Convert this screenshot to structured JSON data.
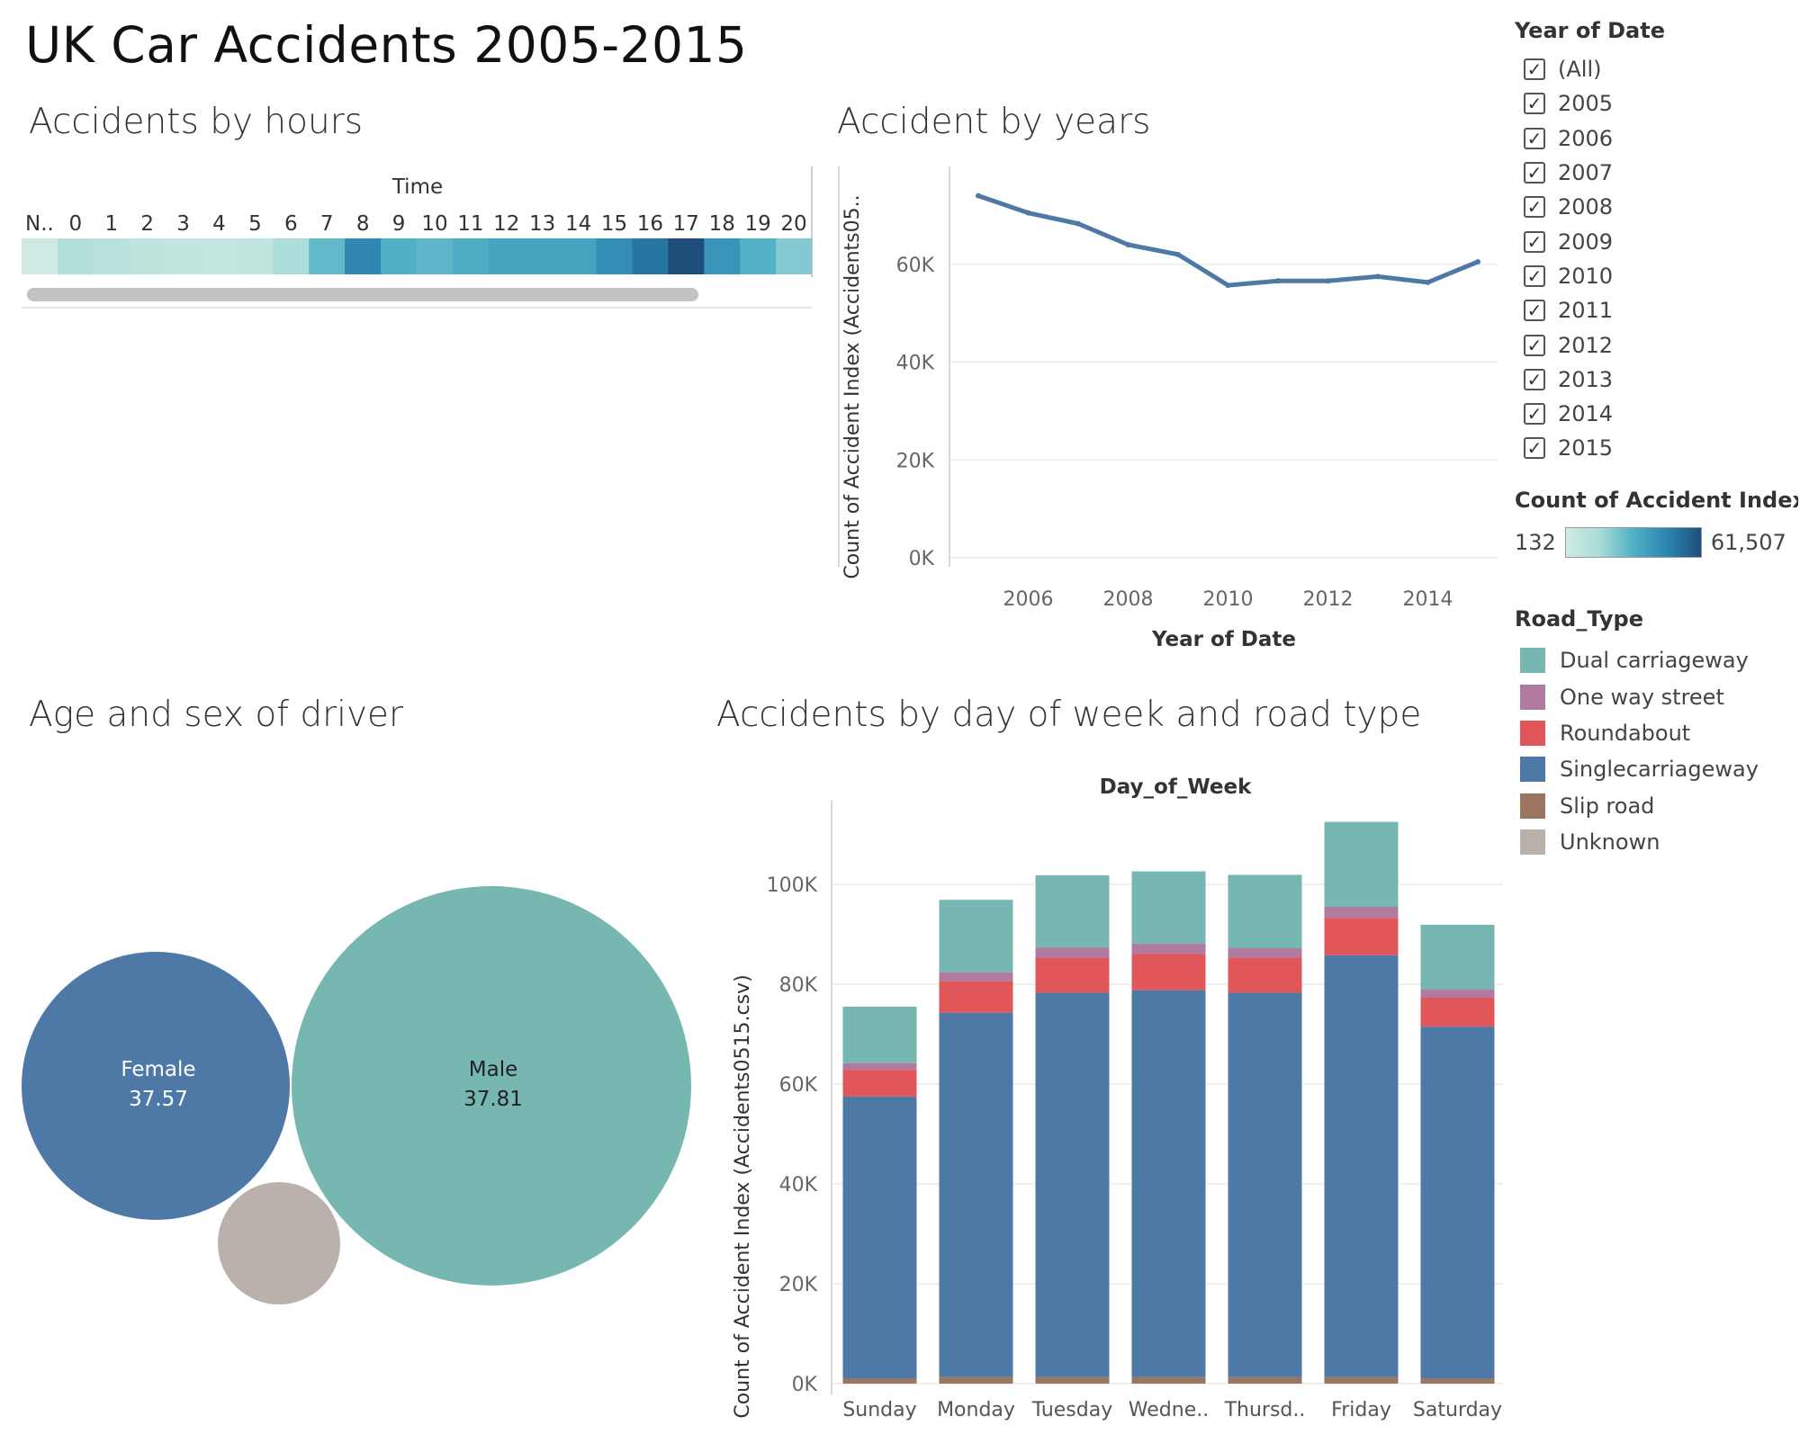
{
  "dashboard_title": "UK Car Accidents 2005-2015",
  "sheets": {
    "hours": "Accidents by hours",
    "years": "Accident by years",
    "age_sex": "Age and sex of driver",
    "dow": "Accidents by day of week and road type"
  },
  "colors": {
    "dual_carriageway": "#76b7b2",
    "one_way_street": "#b07aa1",
    "roundabout": "#e15759",
    "singlecarriageway": "#4e79a7",
    "slip_road": "#9c755f",
    "unknown": "#bab0ac",
    "line": "#4e79a7"
  },
  "filter": {
    "title": "Year of Date",
    "items": [
      {
        "label": "(All)",
        "checked": true
      },
      {
        "label": "2005",
        "checked": true
      },
      {
        "label": "2006",
        "checked": true
      },
      {
        "label": "2007",
        "checked": true
      },
      {
        "label": "2008",
        "checked": true
      },
      {
        "label": "2009",
        "checked": true
      },
      {
        "label": "2010",
        "checked": true
      },
      {
        "label": "2011",
        "checked": true
      },
      {
        "label": "2012",
        "checked": true
      },
      {
        "label": "2013",
        "checked": true
      },
      {
        "label": "2014",
        "checked": true
      },
      {
        "label": "2015",
        "checked": true
      }
    ],
    "check_glyph": "✓"
  },
  "color_legend": {
    "title": "Count of Accident Index (..",
    "min_label": "132",
    "max_label": "61,507"
  },
  "road_type_legend": {
    "title": "Road_Type",
    "items": [
      {
        "label": "Dual carriageway",
        "color": "#76b7b2"
      },
      {
        "label": "One way street",
        "color": "#b07aa1"
      },
      {
        "label": "Roundabout",
        "color": "#e15759"
      },
      {
        "label": "Singlecarriageway",
        "color": "#4e79a7"
      },
      {
        "label": "Slip road",
        "color": "#9c755f"
      },
      {
        "label": "Unknown",
        "color": "#bab0ac"
      }
    ]
  },
  "chart_data": [
    {
      "type": "heatmap",
      "header": "Time",
      "categories": [
        "N..",
        "0",
        "1",
        "2",
        "3",
        "4",
        "5",
        "6",
        "7",
        "8",
        "9",
        "10",
        "11",
        "12",
        "13",
        "14",
        "15",
        "16",
        "17",
        "18",
        "19",
        "20"
      ],
      "values": [
        132,
        12000,
        8500,
        7000,
        5500,
        4500,
        6000,
        14000,
        30000,
        47000,
        34000,
        31000,
        35000,
        38000,
        38000,
        38000,
        45000,
        52000,
        61507,
        43000,
        33000,
        23000
      ],
      "color_range": [
        132,
        61507
      ]
    },
    {
      "type": "line",
      "x": [
        2005,
        2006,
        2007,
        2008,
        2009,
        2010,
        2011,
        2012,
        2013,
        2014,
        2015
      ],
      "y": [
        74000,
        70500,
        68300,
        64000,
        62000,
        55700,
        56600,
        56600,
        57500,
        56300,
        60500
      ],
      "xlabel": "Year of Date",
      "ylabel": "Count of Accident Index (Accidents05..",
      "xticks": [
        "2006",
        "2008",
        "2010",
        "2012",
        "2014"
      ],
      "yticks": [
        "0K",
        "20K",
        "40K",
        "60K"
      ],
      "ylim": [
        0,
        80000
      ]
    },
    {
      "type": "bubble",
      "items": [
        {
          "label": "Female",
          "value": "37.57",
          "color": "#4e79a7"
        },
        {
          "label": "Male",
          "value": "37.81",
          "color": "#76b7b2"
        },
        {
          "label": "",
          "value": "",
          "color": "#bab0ac"
        }
      ]
    },
    {
      "type": "bar",
      "stacked": true,
      "header": "Day_of_Week",
      "categories": [
        "Sunday",
        "Monday",
        "Tuesday",
        "Wedne..",
        "Thursd..",
        "Friday",
        "Saturday"
      ],
      "ylabel": "Count of Accident Index (Accidents0515.csv)",
      "yticks": [
        "0K",
        "20K",
        "40K",
        "60K",
        "80K",
        "100K"
      ],
      "ylim": [
        0,
        115000
      ],
      "series": [
        {
          "name": "Slip road",
          "values": [
            1000,
            1300,
            1300,
            1300,
            1300,
            1300,
            1000
          ]
        },
        {
          "name": "Singlecarriageway",
          "values": [
            56500,
            73000,
            77000,
            77500,
            77000,
            84500,
            70500
          ]
        },
        {
          "name": "Roundabout",
          "values": [
            5300,
            6300,
            7000,
            7300,
            7000,
            7500,
            5800
          ]
        },
        {
          "name": "One way street",
          "values": [
            1400,
            1800,
            2000,
            2000,
            1900,
            2200,
            1700
          ]
        },
        {
          "name": "Dual carriageway",
          "values": [
            11300,
            14500,
            14500,
            14500,
            14700,
            17000,
            12900
          ]
        }
      ]
    }
  ]
}
